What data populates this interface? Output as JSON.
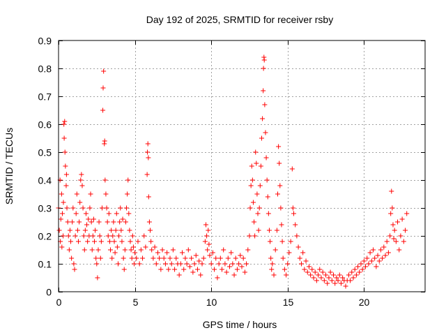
{
  "chart_data": {
    "type": "scatter",
    "title": "Day 192 of 2025, SRMTID for receiver rsby",
    "xlabel": "GPS time / hours",
    "ylabel": "SRMTID / TECUs",
    "xlim": [
      0,
      24
    ],
    "ylim": [
      0,
      0.9
    ],
    "xticks": [
      0,
      5,
      10,
      15,
      20
    ],
    "xtick_labels": [
      "0",
      "5",
      "10",
      "15",
      "20"
    ],
    "yticks": [
      0,
      0.1,
      0.2,
      0.3,
      0.4,
      0.5,
      0.6,
      0.7,
      0.8,
      0.9
    ],
    "ytick_labels": [
      "0",
      "0.1",
      "0.2",
      "0.3",
      "0.4",
      "0.5",
      "0.6",
      "0.7",
      "0.8",
      "0.9"
    ],
    "grid": true,
    "marker": "+",
    "series": [
      {
        "name": "SRMTID",
        "color": "#ff0000",
        "points": [
          [
            0.0,
            0.3
          ],
          [
            0.05,
            0.22
          ],
          [
            0.1,
            0.4
          ],
          [
            0.12,
            0.18
          ],
          [
            0.15,
            0.26
          ],
          [
            0.2,
            0.35
          ],
          [
            0.22,
            0.16
          ],
          [
            0.25,
            0.28
          ],
          [
            0.3,
            0.2
          ],
          [
            0.32,
            0.32
          ],
          [
            0.35,
            0.6
          ],
          [
            0.37,
            0.55
          ],
          [
            0.4,
            0.61
          ],
          [
            0.42,
            0.5
          ],
          [
            0.45,
            0.45
          ],
          [
            0.5,
            0.38
          ],
          [
            0.52,
            0.42
          ],
          [
            0.55,
            0.3
          ],
          [
            0.6,
            0.25
          ],
          [
            0.65,
            0.2
          ],
          [
            0.7,
            0.15
          ],
          [
            0.75,
            0.22
          ],
          [
            0.8,
            0.18
          ],
          [
            0.85,
            0.12
          ],
          [
            0.9,
            0.25
          ],
          [
            0.95,
            0.3
          ],
          [
            1.0,
            0.1
          ],
          [
            1.05,
            0.08
          ],
          [
            1.1,
            0.2
          ],
          [
            1.15,
            0.28
          ],
          [
            1.2,
            0.35
          ],
          [
            1.25,
            0.22
          ],
          [
            1.3,
            0.18
          ],
          [
            1.35,
            0.25
          ],
          [
            1.4,
            0.32
          ],
          [
            1.45,
            0.4
          ],
          [
            1.5,
            0.42
          ],
          [
            1.55,
            0.38
          ],
          [
            1.6,
            0.3
          ],
          [
            1.65,
            0.2
          ],
          [
            1.7,
            0.15
          ],
          [
            1.75,
            0.22
          ],
          [
            1.8,
            0.28
          ],
          [
            1.85,
            0.24
          ],
          [
            1.9,
            0.18
          ],
          [
            1.95,
            0.26
          ],
          [
            2.0,
            0.2
          ],
          [
            2.05,
            0.3
          ],
          [
            2.1,
            0.35
          ],
          [
            2.15,
            0.25
          ],
          [
            2.2,
            0.15
          ],
          [
            2.25,
            0.2
          ],
          [
            2.3,
            0.26
          ],
          [
            2.35,
            0.18
          ],
          [
            2.4,
            0.22
          ],
          [
            2.45,
            0.12
          ],
          [
            2.5,
            0.1
          ],
          [
            2.55,
            0.05
          ],
          [
            2.6,
            0.15
          ],
          [
            2.65,
            0.25
          ],
          [
            2.7,
            0.2
          ],
          [
            2.75,
            0.12
          ],
          [
            2.8,
            0.18
          ],
          [
            2.85,
            0.3
          ],
          [
            2.9,
            0.65
          ],
          [
            2.92,
            0.73
          ],
          [
            2.95,
            0.79
          ],
          [
            3.0,
            0.53
          ],
          [
            3.02,
            0.54
          ],
          [
            3.05,
            0.4
          ],
          [
            3.1,
            0.35
          ],
          [
            3.15,
            0.3
          ],
          [
            3.2,
            0.25
          ],
          [
            3.25,
            0.2
          ],
          [
            3.3,
            0.28
          ],
          [
            3.35,
            0.18
          ],
          [
            3.4,
            0.15
          ],
          [
            3.45,
            0.22
          ],
          [
            3.5,
            0.12
          ],
          [
            3.55,
            0.2
          ],
          [
            3.6,
            0.25
          ],
          [
            3.65,
            0.18
          ],
          [
            3.7,
            0.14
          ],
          [
            3.75,
            0.22
          ],
          [
            3.8,
            0.28
          ],
          [
            3.85,
            0.16
          ],
          [
            3.9,
            0.1
          ],
          [
            3.95,
            0.2
          ],
          [
            4.0,
            0.25
          ],
          [
            4.05,
            0.3
          ],
          [
            4.1,
            0.22
          ],
          [
            4.15,
            0.18
          ],
          [
            4.2,
            0.26
          ],
          [
            4.25,
            0.12
          ],
          [
            4.3,
            0.08
          ],
          [
            4.35,
            0.15
          ],
          [
            4.4,
            0.25
          ],
          [
            4.45,
            0.3
          ],
          [
            4.5,
            0.35
          ],
          [
            4.55,
            0.4
          ],
          [
            4.6,
            0.28
          ],
          [
            4.65,
            0.22
          ],
          [
            4.7,
            0.18
          ],
          [
            4.75,
            0.15
          ],
          [
            4.8,
            0.12
          ],
          [
            4.85,
            0.2
          ],
          [
            4.9,
            0.16
          ],
          [
            4.95,
            0.1
          ],
          [
            5.0,
            0.14
          ],
          [
            5.1,
            0.12
          ],
          [
            5.2,
            0.18
          ],
          [
            5.3,
            0.1
          ],
          [
            5.4,
            0.15
          ],
          [
            5.5,
            0.12
          ],
          [
            5.6,
            0.2
          ],
          [
            5.7,
            0.16
          ],
          [
            5.8,
            0.42
          ],
          [
            5.82,
            0.5
          ],
          [
            5.85,
            0.53
          ],
          [
            5.88,
            0.48
          ],
          [
            5.9,
            0.34
          ],
          [
            5.95,
            0.25
          ],
          [
            6.0,
            0.22
          ],
          [
            6.05,
            0.18
          ],
          [
            6.1,
            0.15
          ],
          [
            6.2,
            0.12
          ],
          [
            6.3,
            0.16
          ],
          [
            6.4,
            0.1
          ],
          [
            6.5,
            0.14
          ],
          [
            6.6,
            0.12
          ],
          [
            6.7,
            0.08
          ],
          [
            6.8,
            0.15
          ],
          [
            6.9,
            0.12
          ],
          [
            7.0,
            0.1
          ],
          [
            7.1,
            0.14
          ],
          [
            7.2,
            0.08
          ],
          [
            7.3,
            0.12
          ],
          [
            7.4,
            0.1
          ],
          [
            7.5,
            0.15
          ],
          [
            7.6,
            0.08
          ],
          [
            7.7,
            0.12
          ],
          [
            7.8,
            0.1
          ],
          [
            7.9,
            0.06
          ],
          [
            8.0,
            0.1
          ],
          [
            8.1,
            0.14
          ],
          [
            8.2,
            0.08
          ],
          [
            8.3,
            0.12
          ],
          [
            8.4,
            0.1
          ],
          [
            8.5,
            0.15
          ],
          [
            8.6,
            0.09
          ],
          [
            8.7,
            0.12
          ],
          [
            8.8,
            0.07
          ],
          [
            8.9,
            0.1
          ],
          [
            9.0,
            0.13
          ],
          [
            9.1,
            0.08
          ],
          [
            9.2,
            0.11
          ],
          [
            9.3,
            0.06
          ],
          [
            9.4,
            0.1
          ],
          [
            9.5,
            0.12
          ],
          [
            9.6,
            0.18
          ],
          [
            9.65,
            0.24
          ],
          [
            9.7,
            0.2
          ],
          [
            9.75,
            0.15
          ],
          [
            9.8,
            0.22
          ],
          [
            9.85,
            0.17
          ],
          [
            9.9,
            0.13
          ],
          [
            10.0,
            0.1
          ],
          [
            10.1,
            0.14
          ],
          [
            10.2,
            0.08
          ],
          [
            10.3,
            0.12
          ],
          [
            10.4,
            0.05
          ],
          [
            10.5,
            0.1
          ],
          [
            10.6,
            0.12
          ],
          [
            10.7,
            0.08
          ],
          [
            10.8,
            0.15
          ],
          [
            10.9,
            0.1
          ],
          [
            11.0,
            0.07
          ],
          [
            11.1,
            0.12
          ],
          [
            11.2,
            0.09
          ],
          [
            11.3,
            0.14
          ],
          [
            11.4,
            0.1
          ],
          [
            11.5,
            0.06
          ],
          [
            11.6,
            0.12
          ],
          [
            11.7,
            0.08
          ],
          [
            11.8,
            0.1
          ],
          [
            11.9,
            0.13
          ],
          [
            12.0,
            0.09
          ],
          [
            12.1,
            0.12
          ],
          [
            12.2,
            0.07
          ],
          [
            12.3,
            0.1
          ],
          [
            12.4,
            0.15
          ],
          [
            12.5,
            0.2
          ],
          [
            12.55,
            0.3
          ],
          [
            12.6,
            0.38
          ],
          [
            12.65,
            0.45
          ],
          [
            12.7,
            0.4
          ],
          [
            12.75,
            0.32
          ],
          [
            12.8,
            0.25
          ],
          [
            12.85,
            0.2
          ],
          [
            12.9,
            0.5
          ],
          [
            12.95,
            0.46
          ],
          [
            13.0,
            0.35
          ],
          [
            13.05,
            0.28
          ],
          [
            13.1,
            0.22
          ],
          [
            13.15,
            0.3
          ],
          [
            13.2,
            0.38
          ],
          [
            13.25,
            0.45
          ],
          [
            13.3,
            0.55
          ],
          [
            13.35,
            0.62
          ],
          [
            13.4,
            0.72
          ],
          [
            13.42,
            0.8
          ],
          [
            13.45,
            0.84
          ],
          [
            13.47,
            0.83
          ],
          [
            13.5,
            0.67
          ],
          [
            13.55,
            0.57
          ],
          [
            13.6,
            0.48
          ],
          [
            13.65,
            0.4
          ],
          [
            13.7,
            0.34
          ],
          [
            13.75,
            0.28
          ],
          [
            13.8,
            0.22
          ],
          [
            13.85,
            0.18
          ],
          [
            13.9,
            0.12
          ],
          [
            13.95,
            0.08
          ],
          [
            14.0,
            0.1
          ],
          [
            14.1,
            0.06
          ],
          [
            14.2,
            0.15
          ],
          [
            14.3,
            0.22
          ],
          [
            14.35,
            0.35
          ],
          [
            14.4,
            0.52
          ],
          [
            14.45,
            0.46
          ],
          [
            14.5,
            0.38
          ],
          [
            14.55,
            0.3
          ],
          [
            14.6,
            0.24
          ],
          [
            14.65,
            0.18
          ],
          [
            14.7,
            0.12
          ],
          [
            14.8,
            0.08
          ],
          [
            14.9,
            0.06
          ],
          [
            15.0,
            0.1
          ],
          [
            15.1,
            0.14
          ],
          [
            15.2,
            0.18
          ],
          [
            15.3,
            0.44
          ],
          [
            15.35,
            0.3
          ],
          [
            15.4,
            0.28
          ],
          [
            15.5,
            0.24
          ],
          [
            15.6,
            0.2
          ],
          [
            15.7,
            0.16
          ],
          [
            15.8,
            0.12
          ],
          [
            15.9,
            0.1
          ],
          [
            16.0,
            0.14
          ],
          [
            16.1,
            0.08
          ],
          [
            16.2,
            0.11
          ],
          [
            16.3,
            0.07
          ],
          [
            16.4,
            0.09
          ],
          [
            16.5,
            0.06
          ],
          [
            16.6,
            0.08
          ],
          [
            16.7,
            0.05
          ],
          [
            16.8,
            0.07
          ],
          [
            16.9,
            0.04
          ],
          [
            17.0,
            0.06
          ],
          [
            17.1,
            0.08
          ],
          [
            17.2,
            0.05
          ],
          [
            17.3,
            0.07
          ],
          [
            17.4,
            0.04
          ],
          [
            17.5,
            0.06
          ],
          [
            17.6,
            0.03
          ],
          [
            17.7,
            0.05
          ],
          [
            17.8,
            0.07
          ],
          [
            17.9,
            0.04
          ],
          [
            18.0,
            0.06
          ],
          [
            18.1,
            0.03
          ],
          [
            18.2,
            0.05
          ],
          [
            18.3,
            0.04
          ],
          [
            18.4,
            0.06
          ],
          [
            18.5,
            0.03
          ],
          [
            18.6,
            0.05
          ],
          [
            18.7,
            0.04
          ],
          [
            18.8,
            0.02
          ],
          [
            18.9,
            0.04
          ],
          [
            19.0,
            0.06
          ],
          [
            19.1,
            0.04
          ],
          [
            19.2,
            0.07
          ],
          [
            19.3,
            0.05
          ],
          [
            19.4,
            0.08
          ],
          [
            19.5,
            0.06
          ],
          [
            19.6,
            0.09
          ],
          [
            19.7,
            0.07
          ],
          [
            19.8,
            0.1
          ],
          [
            19.9,
            0.08
          ],
          [
            20.0,
            0.11
          ],
          [
            20.1,
            0.09
          ],
          [
            20.2,
            0.12
          ],
          [
            20.3,
            0.1
          ],
          [
            20.4,
            0.14
          ],
          [
            20.5,
            0.11
          ],
          [
            20.6,
            0.15
          ],
          [
            20.7,
            0.12
          ],
          [
            20.8,
            0.09
          ],
          [
            20.9,
            0.13
          ],
          [
            21.0,
            0.11
          ],
          [
            21.1,
            0.15
          ],
          [
            21.2,
            0.12
          ],
          [
            21.3,
            0.16
          ],
          [
            21.4,
            0.13
          ],
          [
            21.5,
            0.18
          ],
          [
            21.6,
            0.14
          ],
          [
            21.7,
            0.2
          ],
          [
            21.75,
            0.28
          ],
          [
            21.8,
            0.36
          ],
          [
            21.85,
            0.3
          ],
          [
            21.9,
            0.24
          ],
          [
            21.95,
            0.19
          ],
          [
            22.0,
            0.22
          ],
          [
            22.1,
            0.18
          ],
          [
            22.2,
            0.25
          ],
          [
            22.3,
            0.15
          ],
          [
            22.4,
            0.2
          ],
          [
            22.5,
            0.26
          ],
          [
            22.6,
            0.18
          ],
          [
            22.7,
            0.22
          ],
          [
            22.8,
            0.28
          ]
        ]
      }
    ]
  }
}
